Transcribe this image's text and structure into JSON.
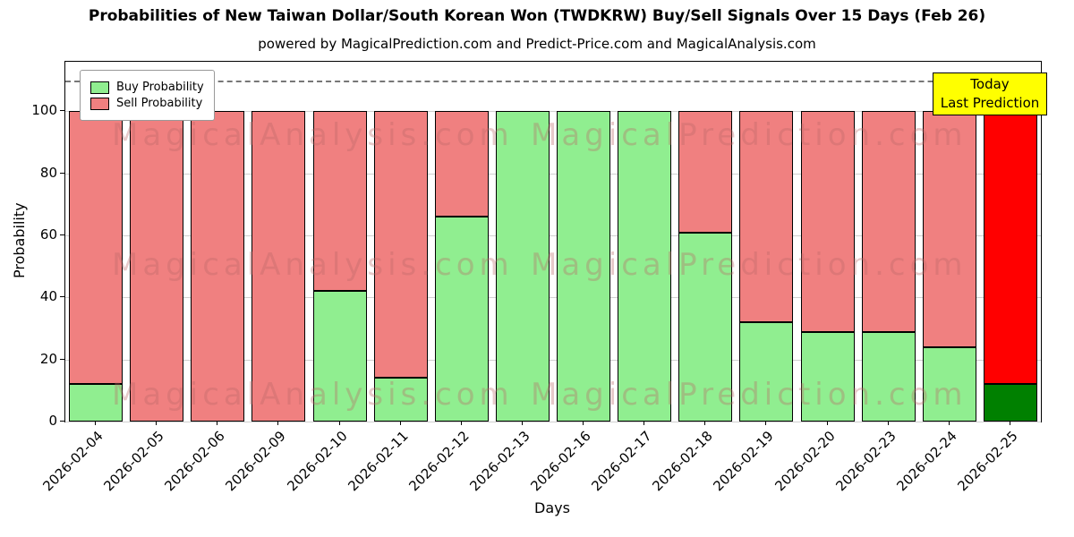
{
  "title": "Probabilities of New Taiwan Dollar/South Korean Won (TWDKRW) Buy/Sell Signals Over 15 Days (Feb 26)",
  "subtitle": "powered by MagicalPrediction.com and Predict-Price.com and MagicalAnalysis.com",
  "annotation": {
    "line1": "Today",
    "line2": "Last Prediction",
    "bg_color": "#ffff00"
  },
  "watermarks": [
    "MagicalAnalysis.com",
    "MagicalPrediction.com"
  ],
  "chart_data": {
    "type": "bar",
    "stacked": true,
    "title": "Probabilities of New Taiwan Dollar/South Korean Won (TWDKRW) Buy/Sell Signals Over 15 Days (Feb 26)",
    "xlabel": "Days",
    "ylabel": "Probability",
    "ylim": [
      0,
      116
    ],
    "yticks": [
      0,
      20,
      40,
      60,
      80,
      100
    ],
    "dashed_line_y": 110,
    "grid": true,
    "legend_position": "upper left",
    "bar_edge_color": "#000000",
    "categories": [
      "2026-02-04",
      "2026-02-05",
      "2026-02-06",
      "2026-02-09",
      "2026-02-10",
      "2026-02-11",
      "2026-02-12",
      "2026-02-13",
      "2026-02-16",
      "2026-02-17",
      "2026-02-18",
      "2026-02-19",
      "2026-02-20",
      "2026-02-23",
      "2026-02-24",
      "2026-02-25"
    ],
    "series": [
      {
        "name": "Buy Probability",
        "color": "#90ee90",
        "values": [
          12,
          0,
          0,
          0,
          42,
          14,
          66,
          100,
          100,
          100,
          61,
          32,
          29,
          29,
          24,
          12
        ]
      },
      {
        "name": "Sell Probability",
        "color": "#f08080",
        "values": [
          88,
          100,
          100,
          100,
          58,
          86,
          34,
          0,
          0,
          0,
          39,
          68,
          71,
          71,
          76,
          88
        ]
      }
    ],
    "today_bar": {
      "category": "2026-02-25",
      "buy_color": "#008000",
      "sell_color": "#ff0000"
    }
  }
}
